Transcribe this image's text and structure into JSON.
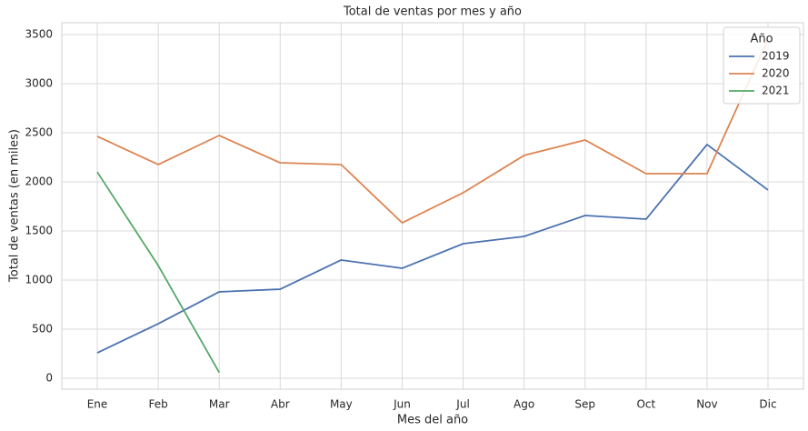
{
  "chart_data": {
    "type": "line",
    "title": "Total de ventas por mes y año",
    "xlabel": "Mes del año",
    "ylabel": "Total de ventas (en miles)",
    "categories": [
      "Ene",
      "Feb",
      "Mar",
      "Abr",
      "May",
      "Jun",
      "Jul",
      "Ago",
      "Sep",
      "Oct",
      "Nov",
      "Dic"
    ],
    "series": [
      {
        "name": "2019",
        "color": "#4c72b0",
        "values": [
          259,
          555,
          880,
          907,
          1204,
          1120,
          1370,
          1444,
          1657,
          1620,
          2380,
          1917
        ]
      },
      {
        "name": "2020",
        "color": "#dd8452",
        "values": [
          2463,
          2176,
          2472,
          2194,
          2176,
          1583,
          1889,
          2269,
          2426,
          2083,
          2083,
          3450
        ]
      },
      {
        "name": "2021",
        "color": "#55a868",
        "values": [
          2100,
          1148,
          59,
          null,
          null,
          null,
          null,
          null,
          null,
          null,
          null,
          null
        ]
      }
    ],
    "ylim": [
      -111,
      3620
    ],
    "yticks": [
      0,
      500,
      1000,
      1500,
      2000,
      2500,
      3000,
      3500
    ],
    "grid": true,
    "legend": {
      "title": "Año",
      "position": "upper right"
    }
  }
}
